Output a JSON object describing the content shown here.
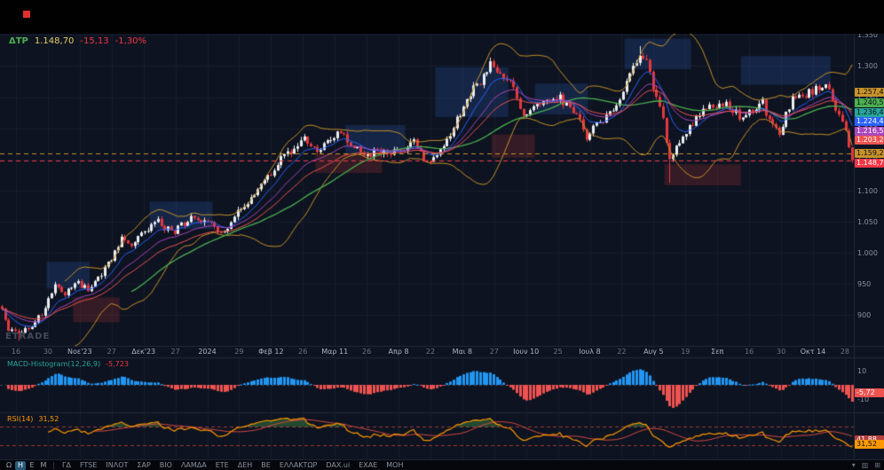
{
  "header": {
    "symbol": "ΔΤΡ",
    "last": "1.148,70",
    "change": "-15,13",
    "change_pct": "-1,30%"
  },
  "watermark": "ETRADE",
  "price_axis": {
    "ticks": [
      {
        "label": "1.350",
        "price": 1350
      },
      {
        "label": "1.300",
        "price": 1300
      },
      {
        "label": "1.250",
        "price": 1250
      },
      {
        "label": "1.200",
        "price": 1200
      },
      {
        "label": "1.150",
        "price": 1150
      },
      {
        "label": "1.100",
        "price": 1100
      },
      {
        "label": "1.050",
        "price": 1050
      },
      {
        "label": "1.000",
        "price": 1000
      },
      {
        "label": "950",
        "price": 950
      },
      {
        "label": "900",
        "price": 900
      }
    ],
    "tags": [
      {
        "label": "1.257,43",
        "price": 1257.43,
        "bg": "#c8922a",
        "fg": "#0b0e14"
      },
      {
        "label": "1.240,56",
        "price": 1240.56,
        "bg": "#4caf50",
        "fg": "#0b0e14"
      },
      {
        "label": "1.236,41",
        "price": 1236.41,
        "bg": "#26a69a",
        "fg": "#0b0e14"
      },
      {
        "label": "1.224,48",
        "price": 1224.48,
        "bg": "#2962ff",
        "fg": "#ffffff"
      },
      {
        "label": "1.216,53",
        "price": 1216.53,
        "bg": "#ab47bc",
        "fg": "#ffffff"
      },
      {
        "label": "1.203,25",
        "price": 1203.25,
        "bg": "#ef5350",
        "fg": "#ffffff"
      },
      {
        "label": "1.159,24",
        "price": 1159.24,
        "bg": "#c8922a",
        "fg": "#0b0e14"
      },
      {
        "label": "1.148,70",
        "price": 1148.7,
        "bg": "#f23645",
        "fg": "#ffffff"
      }
    ]
  },
  "time_axis": {
    "labels": [
      {
        "text": "16"
      },
      {
        "text": "30"
      },
      {
        "text": "Νοε'23",
        "major": true
      },
      {
        "text": "27"
      },
      {
        "text": "Δεκ'23",
        "major": true
      },
      {
        "text": "27"
      },
      {
        "text": "2024",
        "major": true
      },
      {
        "text": "29"
      },
      {
        "text": "Φεβ 12",
        "major": true
      },
      {
        "text": "26"
      },
      {
        "text": "Μαρ 11",
        "major": true
      },
      {
        "text": "26"
      },
      {
        "text": "Απρ 8",
        "major": true
      },
      {
        "text": "22"
      },
      {
        "text": "Μαι 8",
        "major": true
      },
      {
        "text": "27"
      },
      {
        "text": "Ιουν 10",
        "major": true
      },
      {
        "text": "25"
      },
      {
        "text": "Ιουλ 8",
        "major": true
      },
      {
        "text": "22"
      },
      {
        "text": "Αυγ 5",
        "major": true
      },
      {
        "text": "19"
      },
      {
        "text": "Σεπ",
        "major": true
      },
      {
        "text": "16"
      },
      {
        "text": "30"
      },
      {
        "text": "Οκτ 14",
        "major": true
      },
      {
        "text": "28"
      }
    ]
  },
  "macd": {
    "label": "MACD-Histogram(12,26,9)",
    "value": "-5,723",
    "tag": "-5,72",
    "tag_value": -5.723,
    "ticks": [
      {
        "label": "10",
        "value": 10
      },
      {
        "label": "-10",
        "value": -10
      }
    ]
  },
  "rsi": {
    "label": "RSI(14)",
    "value": "31,52",
    "levels": [
      70,
      30
    ],
    "tags": [
      {
        "label": "41,88",
        "value": 41.88,
        "bg": "#b5403c",
        "fg": "#ffffff"
      },
      {
        "label": "31,52",
        "value": 31.52,
        "bg": "#ff9800",
        "fg": "#0b0e14"
      }
    ]
  },
  "toolbar": {
    "timeframes": [
      {
        "label": "Ω"
      },
      {
        "label": "Η",
        "active": true
      },
      {
        "label": "Ε"
      },
      {
        "label": "Μ"
      }
    ],
    "tickers": [
      "ΓΔ",
      "FTSE",
      "ΙΝΛΟΤ",
      "ΣΑΡ",
      "ΒΙΟ",
      "ΛΑΜΔΑ",
      "ΕΤΕ",
      "ΔΕΗ",
      "ΒΕ",
      "ΕΛΛΑΚΤΩΡ",
      "DAX.ui",
      "ΕΧΑΕ",
      "ΜΟΗ"
    ],
    "icons": [
      {
        "name": "panel-collapse-icon",
        "glyph": "▾"
      },
      {
        "name": "bar-chart-icon",
        "glyph": "▥"
      },
      {
        "name": "layout-grid-icon",
        "glyph": "⊞"
      }
    ]
  },
  "colors": {
    "up": "#eceff2",
    "down": "#e5383f",
    "grid": "#161e2c",
    "sep": "#222b3b",
    "bb": "#c8922a",
    "ma_fast": "#2962ff",
    "ma_mid": "#ab47bc",
    "ma_red": "#ef5350",
    "ma_slow": "#4caf50",
    "macd_pos": "#2196f3",
    "macd_neg": "#ef5350",
    "rsi_line": "#ff9800",
    "rsi_ma": "#d64a45",
    "rsi_level": "#9e3a3a",
    "rsi_fill": "rgba(76,175,80,0.35)",
    "zone_blue": "rgba(45,90,170,0.27)",
    "zone_red": "rgba(170,52,52,0.25)",
    "accent_green": "#4caf50",
    "accent_red": "#f23645",
    "accent_yellow": "#e3cf5e"
  },
  "chart_data": {
    "type": "candlestick",
    "symbol": "ΔΤΡ",
    "timeframe": "Η",
    "ylim": [
      850,
      1352
    ],
    "n_candles": 257,
    "last_close": 1148.7,
    "anchors": [
      [
        0,
        905
      ],
      [
        2,
        878
      ],
      [
        5,
        866
      ],
      [
        8,
        880
      ],
      [
        12,
        900
      ],
      [
        16,
        948
      ],
      [
        19,
        932
      ],
      [
        23,
        952
      ],
      [
        26,
        938
      ],
      [
        30,
        965
      ],
      [
        33,
        990
      ],
      [
        36,
        1026
      ],
      [
        39,
        1012
      ],
      [
        43,
        1032
      ],
      [
        47,
        1050
      ],
      [
        51,
        1032
      ],
      [
        55,
        1048
      ],
      [
        57,
        1062
      ],
      [
        60,
        1052
      ],
      [
        63,
        1046
      ],
      [
        66,
        1028
      ],
      [
        70,
        1058
      ],
      [
        75,
        1086
      ],
      [
        79,
        1112
      ],
      [
        83,
        1145
      ],
      [
        87,
        1160
      ],
      [
        91,
        1183
      ],
      [
        95,
        1162
      ],
      [
        99,
        1185
      ],
      [
        101,
        1192
      ],
      [
        105,
        1178
      ],
      [
        109,
        1152
      ],
      [
        113,
        1162
      ],
      [
        117,
        1158
      ],
      [
        120,
        1162
      ],
      [
        124,
        1176
      ],
      [
        127,
        1152
      ],
      [
        129,
        1140
      ],
      [
        133,
        1170
      ],
      [
        136,
        1205
      ],
      [
        139,
        1232
      ],
      [
        142,
        1262
      ],
      [
        145,
        1284
      ],
      [
        147,
        1300
      ],
      [
        150,
        1288
      ],
      [
        153,
        1272
      ],
      [
        157,
        1222
      ],
      [
        160,
        1230
      ],
      [
        164,
        1240
      ],
      [
        167,
        1252
      ],
      [
        170,
        1236
      ],
      [
        173,
        1222
      ],
      [
        176,
        1182
      ],
      [
        179,
        1206
      ],
      [
        183,
        1220
      ],
      [
        186,
        1250
      ],
      [
        189,
        1282
      ],
      [
        192,
        1318
      ],
      [
        194,
        1310
      ],
      [
        196,
        1262
      ],
      [
        199,
        1215
      ],
      [
        201,
        1152
      ],
      [
        203,
        1168
      ],
      [
        206,
        1192
      ],
      [
        210,
        1226
      ],
      [
        213,
        1232
      ],
      [
        217,
        1238
      ],
      [
        220,
        1230
      ],
      [
        223,
        1212
      ],
      [
        226,
        1228
      ],
      [
        229,
        1240
      ],
      [
        232,
        1200
      ],
      [
        234,
        1196
      ],
      [
        238,
        1244
      ],
      [
        241,
        1252
      ],
      [
        244,
        1258
      ],
      [
        248,
        1270
      ],
      [
        250,
        1244
      ],
      [
        252,
        1216
      ],
      [
        254,
        1192
      ],
      [
        255,
        1170
      ],
      [
        256,
        1148.7
      ]
    ],
    "spikes": [
      {
        "i": 5,
        "low": 858
      },
      {
        "i": 147,
        "high": 1306
      },
      {
        "i": 192,
        "high": 1332
      },
      {
        "i": 201,
        "low": 1112
      }
    ],
    "overlays": [
      {
        "name": "EMA9",
        "color": "#2962ff"
      },
      {
        "name": "EMA18",
        "color": "#ab47bc"
      },
      {
        "name": "EMA27",
        "color": "#ef5350"
      },
      {
        "name": "SMA40",
        "color": "#4caf50"
      },
      {
        "name": "BB(20,2)",
        "color": "#c8922a"
      }
    ],
    "levels": [
      {
        "price": 1159.24,
        "color": "#c8922a"
      },
      {
        "price": 1148.7,
        "color": "#f23645"
      }
    ],
    "zones": [
      {
        "i0": 14,
        "i1": 27,
        "p0": 942,
        "p1": 985,
        "kind": "blue"
      },
      {
        "i0": 22,
        "i1": 36,
        "p0": 888,
        "p1": 928,
        "kind": "red"
      },
      {
        "i0": 45,
        "i1": 64,
        "p0": 1038,
        "p1": 1082,
        "kind": "blue"
      },
      {
        "i0": 95,
        "i1": 115,
        "p0": 1128,
        "p1": 1158,
        "kind": "red"
      },
      {
        "i0": 104,
        "i1": 122,
        "p0": 1160,
        "p1": 1205,
        "kind": "blue"
      },
      {
        "i0": 131,
        "i1": 153,
        "p0": 1218,
        "p1": 1298,
        "kind": "blue"
      },
      {
        "i0": 148,
        "i1": 161,
        "p0": 1152,
        "p1": 1190,
        "kind": "red"
      },
      {
        "i0": 161,
        "i1": 177,
        "p0": 1222,
        "p1": 1272,
        "kind": "blue"
      },
      {
        "i0": 188,
        "i1": 208,
        "p0": 1295,
        "p1": 1344,
        "kind": "blue"
      },
      {
        "i0": 200,
        "i1": 223,
        "p0": 1108,
        "p1": 1142,
        "kind": "red"
      },
      {
        "i0": 223,
        "i1": 250,
        "p0": 1270,
        "p1": 1316,
        "kind": "blue"
      }
    ]
  }
}
